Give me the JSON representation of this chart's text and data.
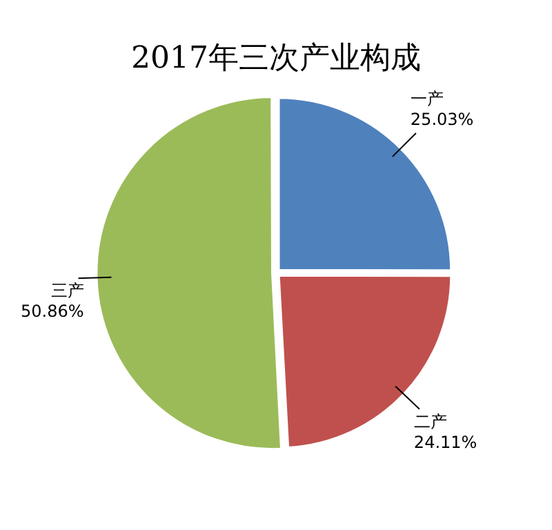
{
  "chart_data": {
    "type": "pie",
    "title": "2017年三次产业构成",
    "categories": [
      "一产",
      "二产",
      "三产"
    ],
    "values": [
      25.03,
      24.11,
      50.86
    ],
    "value_labels": [
      "25.03%",
      "24.11%",
      "50.86%"
    ],
    "colors": [
      "#4f81bd",
      "#c0504d",
      "#9bbb59"
    ],
    "legend": false
  }
}
